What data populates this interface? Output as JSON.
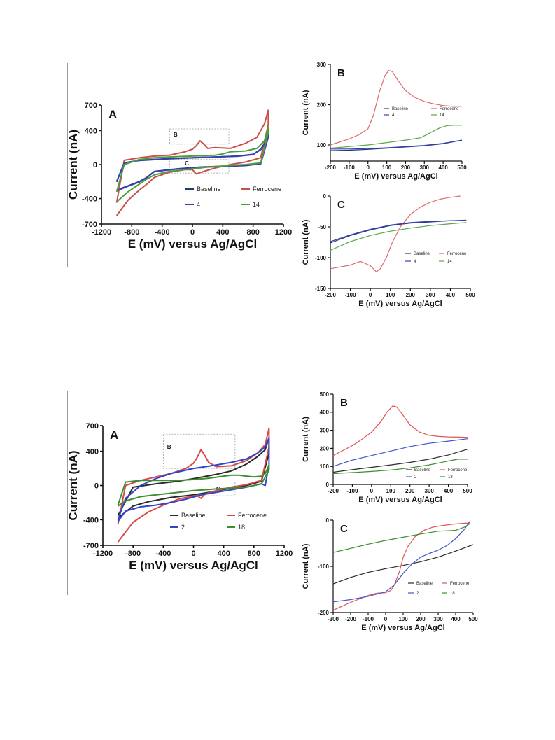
{
  "chart_data": [
    {
      "id": "fig1-A",
      "type": "line",
      "panel": "A",
      "xlabel": "E (mV) versus Ag/AgCl",
      "ylabel": "Current (nA)",
      "xlim": [
        -1200,
        1200
      ],
      "ylim": [
        -700,
        700
      ],
      "xticks": [
        -1200,
        -800,
        -400,
        0,
        400,
        800,
        1200
      ],
      "yticks": [
        -700,
        -400,
        0,
        400,
        700
      ],
      "inset_labels": [
        "B",
        "C"
      ],
      "series": [
        {
          "name": "Baseline",
          "color": "#1f3b73",
          "x": [
            -1000,
            -900,
            -700,
            -500,
            -300,
            0,
            300,
            600,
            800,
            900,
            950,
            1000,
            1000,
            900,
            700,
            400,
            100,
            -200,
            -500,
            -600,
            -700,
            -850,
            -1000
          ],
          "y": [
            -200,
            20,
            50,
            60,
            70,
            80,
            90,
            100,
            120,
            180,
            250,
            420,
            330,
            10,
            -10,
            -20,
            -30,
            -50,
            -80,
            -150,
            -200,
            -250,
            -300
          ]
        },
        {
          "name": "Ferrocene",
          "color": "#c9504b",
          "x": [
            -1000,
            -900,
            -700,
            -500,
            -300,
            -100,
            0,
            50,
            100,
            150,
            200,
            300,
            500,
            700,
            850,
            950,
            1000,
            1000,
            900,
            700,
            500,
            300,
            150,
            50,
            0,
            -100,
            -300,
            -500,
            -600,
            -700,
            -850,
            -1000
          ],
          "y": [
            -450,
            50,
            80,
            100,
            110,
            150,
            180,
            220,
            280,
            240,
            190,
            200,
            190,
            250,
            320,
            480,
            640,
            470,
            80,
            30,
            0,
            -40,
            -80,
            -110,
            -60,
            -60,
            -90,
            -150,
            -230,
            -300,
            -420,
            -600
          ]
        },
        {
          "name": "4",
          "color": "#3a3fb5",
          "x": [
            -1000,
            -900,
            -700,
            -500,
            -300,
            0,
            300,
            600,
            800,
            900,
            950,
            1000,
            1000,
            900,
            700,
            400,
            100,
            -200,
            -500,
            -600,
            -700,
            -850,
            -1000
          ],
          "y": [
            -205,
            18,
            48,
            58,
            68,
            78,
            88,
            98,
            118,
            175,
            240,
            410,
            320,
            8,
            -12,
            -22,
            -32,
            -52,
            -82,
            -152,
            -205,
            -255,
            -310
          ]
        },
        {
          "name": "14",
          "color": "#4c9e3c",
          "x": [
            -1000,
            -900,
            -700,
            -500,
            -300,
            0,
            300,
            400,
            500,
            700,
            850,
            950,
            1000,
            1000,
            900,
            700,
            500,
            200,
            0,
            -300,
            -500,
            -600,
            -700,
            -850,
            -1000
          ],
          "y": [
            -320,
            0,
            60,
            80,
            90,
            100,
            110,
            125,
            150,
            160,
            190,
            280,
            430,
            380,
            20,
            0,
            -10,
            -30,
            -50,
            -80,
            -120,
            -170,
            -230,
            -320,
            -440
          ]
        }
      ]
    },
    {
      "id": "fig1-B",
      "type": "line",
      "panel": "B",
      "xlabel": "E (mV) versus Ag/AgCl",
      "ylabel": "Current (nA)",
      "xlim": [
        -200,
        500
      ],
      "ylim": [
        60,
        300
      ],
      "xticks": [
        -200,
        -100,
        0,
        100,
        200,
        300,
        400,
        500
      ],
      "yticks": [
        100,
        200,
        300
      ],
      "series": [
        {
          "name": "Baseline",
          "color": "#1f3b73",
          "x": [
            -200,
            -100,
            0,
            100,
            200,
            300,
            400,
            500
          ],
          "y": [
            86,
            87,
            89,
            92,
            95,
            98,
            103,
            112
          ]
        },
        {
          "name": "Ferrocene",
          "color": "#e06b6b",
          "x": [
            -200,
            -100,
            -50,
            0,
            30,
            60,
            90,
            110,
            130,
            160,
            200,
            250,
            300,
            350,
            400,
            450,
            500
          ],
          "y": [
            100,
            115,
            125,
            140,
            175,
            230,
            272,
            285,
            282,
            260,
            235,
            218,
            208,
            202,
            198,
            196,
            196
          ]
        },
        {
          "name": "4",
          "color": "#3a3fb5",
          "x": [
            -200,
            -100,
            0,
            100,
            200,
            300,
            400,
            500
          ],
          "y": [
            90,
            90,
            91,
            93,
            96,
            99,
            104,
            112
          ]
        },
        {
          "name": "14",
          "color": "#5aa84a",
          "x": [
            -200,
            -100,
            0,
            100,
            200,
            280,
            330,
            380,
            420,
            460,
            500
          ],
          "y": [
            92,
            96,
            100,
            106,
            112,
            118,
            130,
            142,
            148,
            149,
            149
          ]
        }
      ]
    },
    {
      "id": "fig1-C",
      "type": "line",
      "panel": "C",
      "xlabel": "E (mV) versus Ag/AgCl",
      "ylabel": "Current (nA)",
      "xlim": [
        -200,
        500
      ],
      "ylim": [
        -150,
        0
      ],
      "xticks": [
        -200,
        -100,
        0,
        100,
        200,
        300,
        400,
        500
      ],
      "yticks": [
        -150,
        -100,
        -50,
        0
      ],
      "series": [
        {
          "name": "Baseline",
          "color": "#1f3b73",
          "x": [
            -200,
            -100,
            0,
            100,
            200,
            300,
            400,
            480
          ],
          "y": [
            -76,
            -64,
            -55,
            -48,
            -44,
            -42,
            -40,
            -40
          ]
        },
        {
          "name": "Ferrocene",
          "color": "#e06b6b",
          "x": [
            -200,
            -100,
            -50,
            0,
            30,
            50,
            80,
            110,
            150,
            200,
            250,
            300,
            350,
            400,
            450
          ],
          "y": [
            -118,
            -112,
            -106,
            -113,
            -123,
            -118,
            -100,
            -75,
            -50,
            -30,
            -18,
            -10,
            -5,
            -2,
            0
          ]
        },
        {
          "name": "4",
          "color": "#3a3fb5",
          "x": [
            -200,
            -100,
            0,
            100,
            200,
            300,
            400,
            480
          ],
          "y": [
            -74,
            -63,
            -54,
            -47,
            -43,
            -41,
            -40,
            -39
          ]
        },
        {
          "name": "14",
          "color": "#5aa84a",
          "x": [
            -200,
            -100,
            0,
            100,
            200,
            300,
            400,
            480
          ],
          "y": [
            -88,
            -74,
            -64,
            -57,
            -52,
            -48,
            -45,
            -43
          ]
        }
      ]
    },
    {
      "id": "fig2-A",
      "type": "line",
      "panel": "A",
      "xlabel": "E (mV) versus Ag/AgCl",
      "ylabel": "Current (nA)",
      "xlim": [
        -1200,
        1200
      ],
      "ylim": [
        -700,
        700
      ],
      "xticks": [
        -1200,
        -800,
        -400,
        0,
        400,
        800,
        1200
      ],
      "yticks": [
        -700,
        -400,
        0,
        400,
        700
      ],
      "inset_labels": [
        "B",
        "C"
      ],
      "series": [
        {
          "name": "Baseline",
          "color": "#2a2a2a",
          "x": [
            -1000,
            -800,
            -500,
            -200,
            0,
            300,
            500,
            700,
            850,
            950,
            1000,
            1000,
            900,
            700,
            500,
            200,
            0,
            -300,
            -600,
            -800,
            -1000
          ],
          "y": [
            -350,
            -20,
            20,
            50,
            80,
            130,
            170,
            250,
            340,
            420,
            560,
            380,
            50,
            0,
            -30,
            -80,
            -110,
            -140,
            -190,
            -240,
            -380
          ]
        },
        {
          "name": "Ferrocene",
          "color": "#d84848",
          "x": [
            -1000,
            -900,
            -700,
            -500,
            -300,
            -100,
            0,
            50,
            100,
            150,
            200,
            300,
            500,
            700,
            850,
            950,
            1000,
            1000,
            900,
            700,
            500,
            300,
            150,
            100,
            50,
            0,
            -200,
            -400,
            -600,
            -800,
            -1000
          ],
          "y": [
            -450,
            0,
            60,
            100,
            140,
            200,
            260,
            330,
            420,
            350,
            270,
            220,
            230,
            290,
            380,
            480,
            670,
            450,
            60,
            10,
            -20,
            -60,
            -100,
            -150,
            -120,
            -120,
            -160,
            -230,
            -310,
            -430,
            -660
          ]
        },
        {
          "name": "2",
          "color": "#2f45c9",
          "x": [
            -1000,
            -900,
            -700,
            -500,
            -300,
            0,
            300,
            500,
            700,
            850,
            950,
            1000,
            1000,
            950,
            900,
            700,
            500,
            300,
            100,
            -100,
            -300,
            -500,
            -700,
            -900,
            -1000
          ],
          "y": [
            -400,
            -150,
            0,
            80,
            140,
            200,
            240,
            270,
            310,
            380,
            450,
            560,
            250,
            0,
            20,
            -20,
            -50,
            -80,
            -110,
            -160,
            -200,
            -230,
            -250,
            -300,
            -420
          ]
        },
        {
          "name": "18",
          "color": "#3c8f2e",
          "x": [
            -1000,
            -900,
            -700,
            -500,
            -200,
            0,
            200,
            400,
            500,
            600,
            700,
            800,
            900,
            950,
            1000,
            1000,
            900,
            700,
            500,
            300,
            0,
            -300,
            -500,
            -700,
            -900,
            -1000
          ],
          "y": [
            -230,
            40,
            60,
            60,
            60,
            70,
            85,
            110,
            120,
            120,
            110,
            100,
            110,
            140,
            240,
            180,
            20,
            -20,
            -30,
            -40,
            -60,
            -90,
            -110,
            -130,
            -180,
            -240
          ]
        }
      ]
    },
    {
      "id": "fig2-B",
      "type": "line",
      "panel": "B",
      "xlabel": "E (mV) versus Ag/AgCl",
      "ylabel": "Current (nA)",
      "xlim": [
        -200,
        500
      ],
      "ylim": [
        0,
        500
      ],
      "xticks": [
        -200,
        -100,
        0,
        100,
        200,
        300,
        400,
        500
      ],
      "yticks": [
        0,
        100,
        200,
        300,
        400,
        500
      ],
      "series": [
        {
          "name": "Baseline",
          "color": "#2a2a2a",
          "x": [
            -200,
            -100,
            0,
            100,
            200,
            300,
            400,
            500
          ],
          "y": [
            68,
            82,
            95,
            108,
            122,
            140,
            163,
            195
          ]
        },
        {
          "name": "Ferrocene",
          "color": "#e05454",
          "x": [
            -200,
            -100,
            -50,
            0,
            50,
            80,
            110,
            130,
            160,
            200,
            250,
            300,
            350,
            400,
            450,
            500
          ],
          "y": [
            160,
            215,
            250,
            290,
            350,
            400,
            435,
            430,
            390,
            330,
            290,
            272,
            266,
            263,
            262,
            261
          ]
        },
        {
          "name": "2",
          "color": "#4455cc",
          "x": [
            -200,
            -100,
            0,
            100,
            200,
            300,
            400,
            500
          ],
          "y": [
            100,
            135,
            160,
            185,
            210,
            228,
            240,
            253
          ]
        },
        {
          "name": "18",
          "color": "#3c8f2e",
          "x": [
            -200,
            -100,
            0,
            100,
            200,
            300,
            400,
            450,
            500
          ],
          "y": [
            60,
            66,
            72,
            80,
            92,
            108,
            130,
            140,
            140
          ]
        }
      ]
    },
    {
      "id": "fig2-C",
      "type": "line",
      "panel": "C",
      "xlabel": "E (mV) versus Ag/AgCl",
      "ylabel": "Current (nA)",
      "xlim": [
        -300,
        500
      ],
      "ylim": [
        -200,
        0
      ],
      "xticks": [
        -300,
        -200,
        -100,
        0,
        100,
        200,
        300,
        400,
        500
      ],
      "yticks": [
        -200,
        -100,
        0
      ],
      "series": [
        {
          "name": "Baseline",
          "color": "#2a2a2a",
          "x": [
            -300,
            -200,
            -100,
            0,
            100,
            200,
            300,
            400,
            500
          ],
          "y": [
            -138,
            -124,
            -113,
            -105,
            -98,
            -90,
            -80,
            -67,
            -53
          ]
        },
        {
          "name": "Ferrocene",
          "color": "#e05454",
          "x": [
            -300,
            -200,
            -100,
            -50,
            0,
            30,
            50,
            80,
            100,
            130,
            170,
            220,
            270,
            320,
            380,
            440,
            480
          ],
          "y": [
            -195,
            -178,
            -163,
            -158,
            -157,
            -152,
            -140,
            -110,
            -80,
            -55,
            -35,
            -22,
            -15,
            -12,
            -9,
            -7,
            -6
          ]
        },
        {
          "name": "2",
          "color": "#4455cc",
          "x": [
            -300,
            -200,
            -100,
            0,
            50,
            100,
            150,
            200,
            250,
            300,
            350,
            400,
            450,
            480
          ],
          "y": [
            -177,
            -172,
            -165,
            -155,
            -140,
            -115,
            -95,
            -80,
            -72,
            -65,
            -55,
            -40,
            -20,
            -3
          ]
        },
        {
          "name": "18",
          "color": "#3c8f2e",
          "x": [
            -300,
            -200,
            -100,
            0,
            100,
            200,
            300,
            350,
            400,
            450,
            480
          ],
          "y": [
            -70,
            -61,
            -52,
            -44,
            -37,
            -30,
            -24,
            -23,
            -22,
            -15,
            -8
          ]
        }
      ]
    }
  ]
}
